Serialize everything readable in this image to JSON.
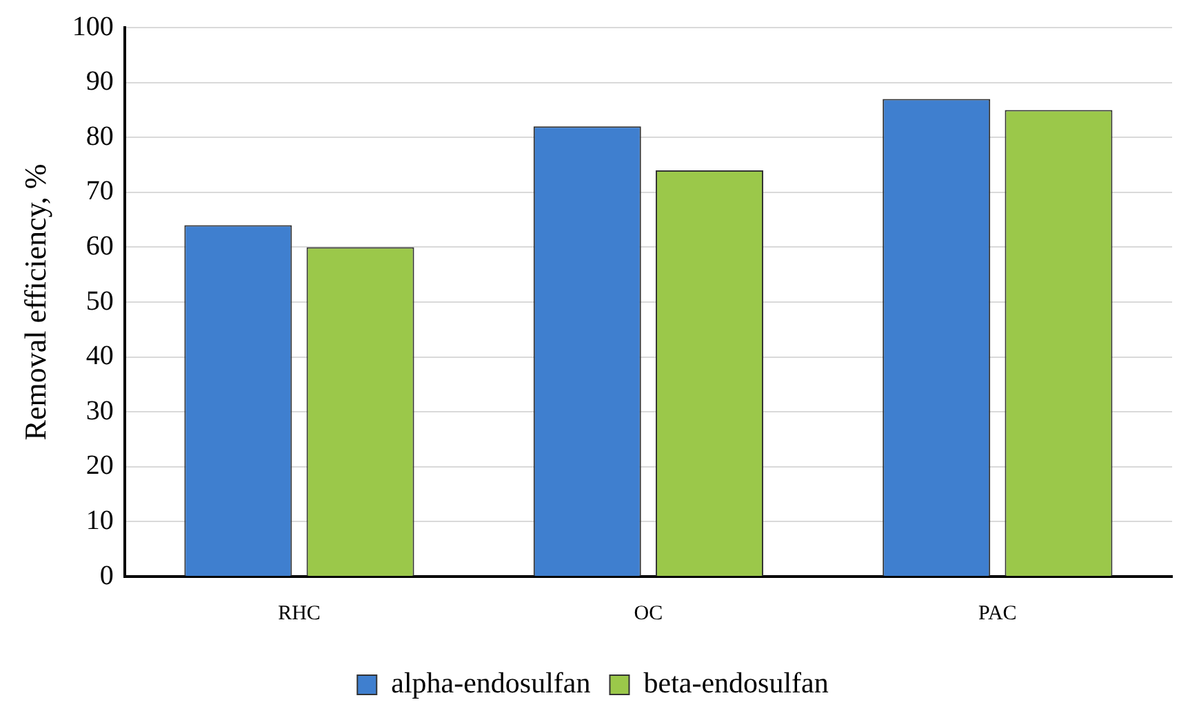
{
  "chart_data": {
    "type": "bar",
    "ylabel": "Removal efficiency, %",
    "categories": [
      "RHC",
      "OC",
      "PAC"
    ],
    "series": [
      {
        "name": "alpha-endosulfan",
        "color": "#3f7fcf",
        "values": [
          64,
          82,
          87
        ]
      },
      {
        "name": "beta-endosulfan",
        "color": "#9bc84a",
        "values": [
          60,
          74,
          85
        ]
      }
    ],
    "ylim": [
      0,
      100
    ],
    "yticks": [
      0,
      10,
      20,
      30,
      40,
      50,
      60,
      70,
      80,
      90,
      100
    ],
    "grid": "y",
    "legend": "bottom"
  }
}
